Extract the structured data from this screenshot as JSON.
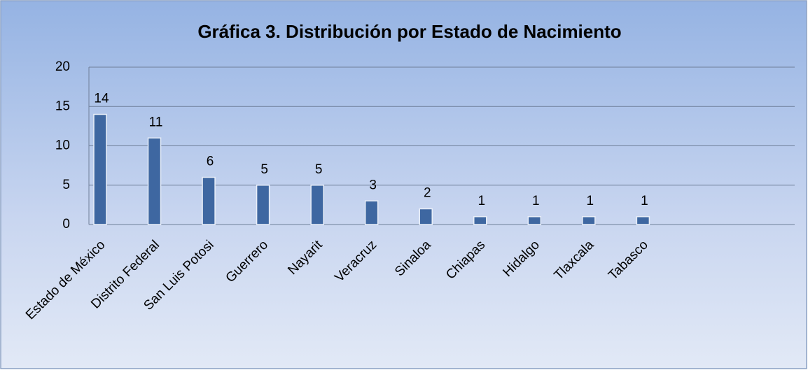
{
  "chart_data": {
    "type": "bar",
    "title": "Gráfica 3. Distribución por Estado de Nacimiento",
    "categories": [
      "Estado de México",
      "Distrito Federal",
      "San Luis Potosi",
      "Guerrero",
      "Nayarit",
      "Veracruz",
      "Sinaloa",
      "Chiapas",
      "Hidalgo",
      "Tlaxcala",
      "Tabasco",
      null,
      null
    ],
    "values": [
      14,
      11,
      6,
      5,
      5,
      3,
      2,
      1,
      1,
      1,
      1,
      null,
      null
    ],
    "color": "#3e67a1",
    "ylim": [
      0,
      20
    ],
    "yticks": [
      0,
      5,
      10,
      15,
      20
    ],
    "grid": true,
    "data_labels": true
  }
}
